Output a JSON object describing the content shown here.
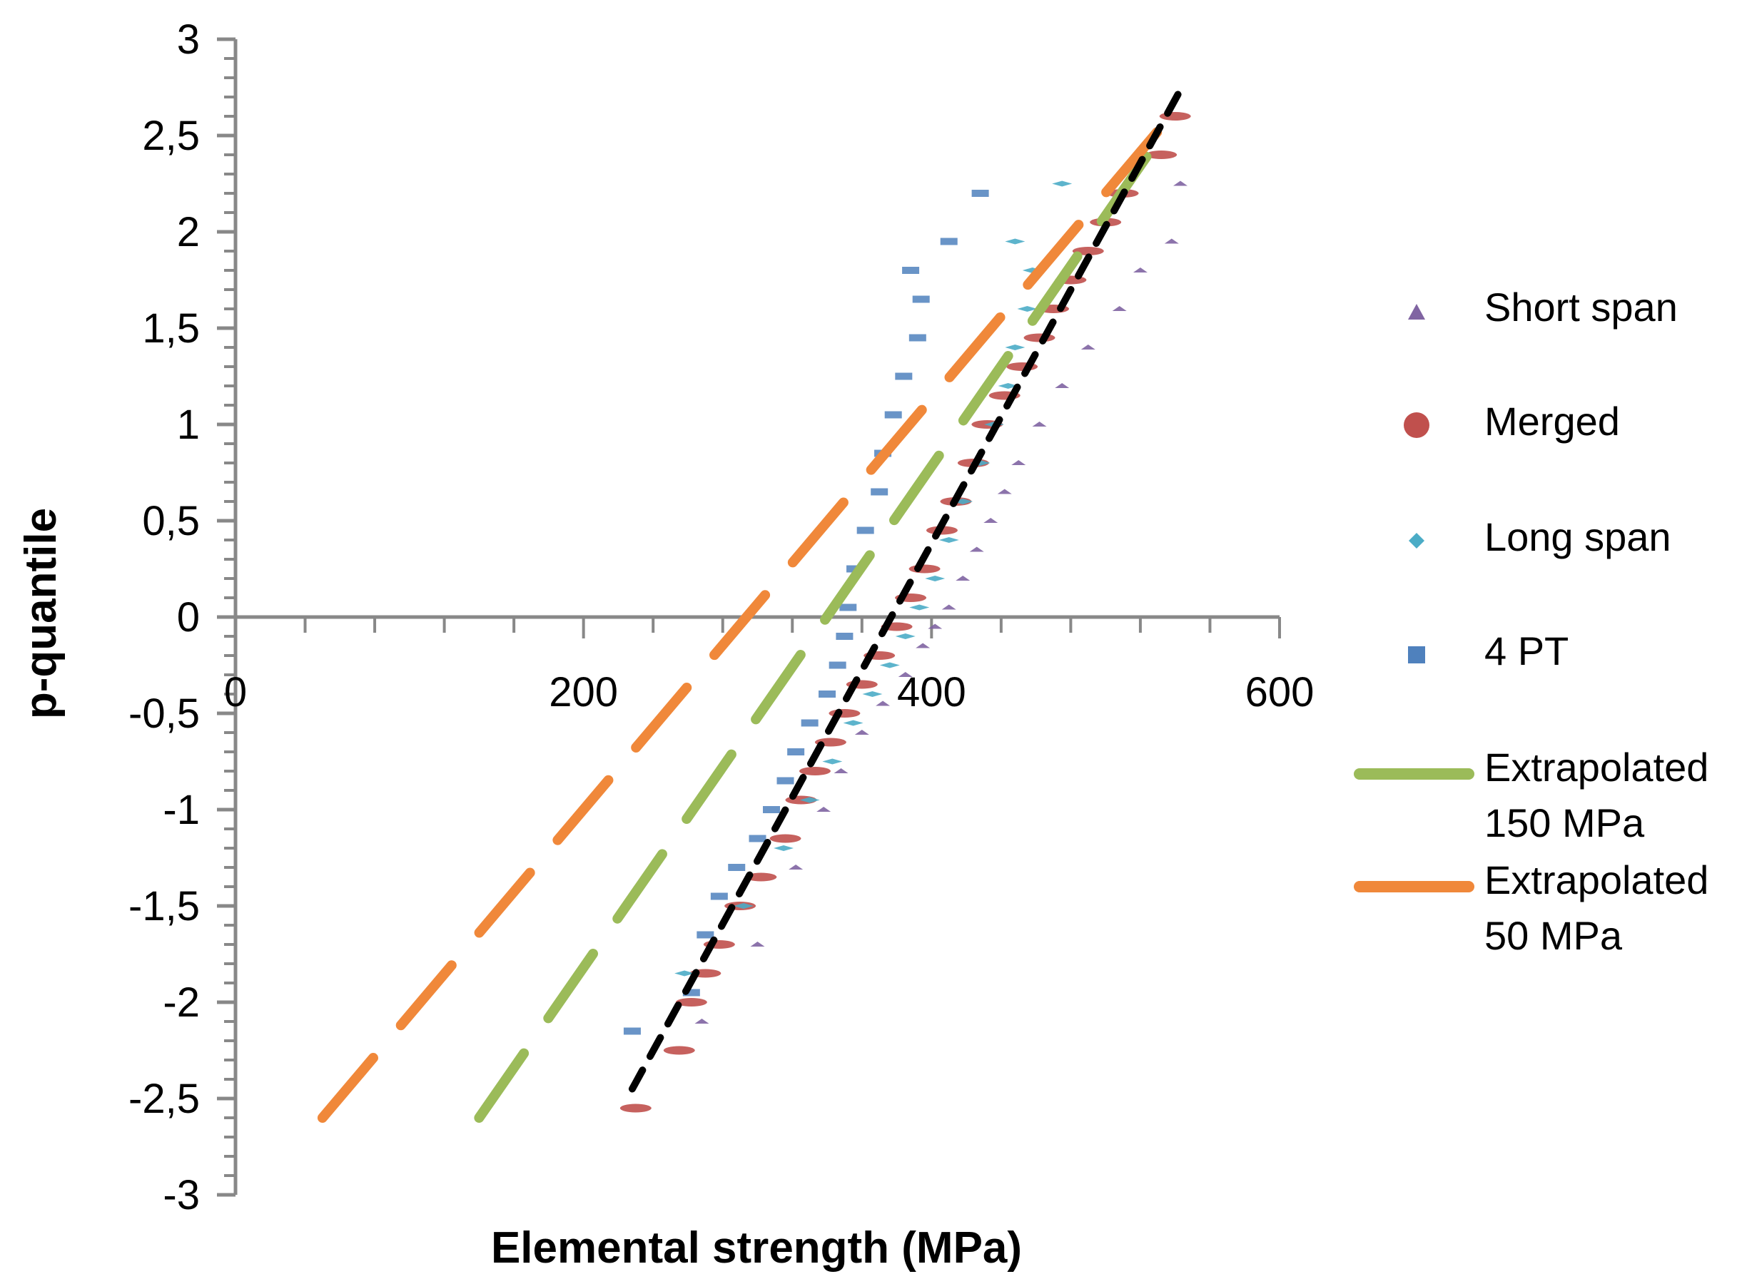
{
  "chart_data": {
    "type": "scatter",
    "xlabel": "Elemental strength (MPa)",
    "ylabel": "p-quantile",
    "xlim": [
      0,
      600
    ],
    "ylim": [
      -3,
      3
    ],
    "x_ticks": [
      "0",
      "200",
      "400",
      "600"
    ],
    "x_tick_values": [
      0,
      200,
      400,
      600
    ],
    "y_ticks": [
      "3",
      "2,5",
      "2",
      "1,5",
      "1",
      "0,5",
      "0",
      "-0,5",
      "-1",
      "-1,5",
      "-2",
      "-2,5",
      "-3"
    ],
    "y_tick_values": [
      3,
      2.5,
      2,
      1.5,
      1,
      0.5,
      0,
      -0.5,
      -1,
      -1.5,
      -2,
      -2.5,
      -3
    ],
    "grid": false,
    "legend_position": "right",
    "series": [
      {
        "name": "Short span",
        "marker": "triangle",
        "color": "#8064A2",
        "points": [
          [
            268,
            -2.1
          ],
          [
            300,
            -1.7
          ],
          [
            322,
            -1.3
          ],
          [
            338,
            -1.0
          ],
          [
            348,
            -0.8
          ],
          [
            360,
            -0.6
          ],
          [
            372,
            -0.45
          ],
          [
            385,
            -0.3
          ],
          [
            395,
            -0.15
          ],
          [
            402,
            -0.05
          ],
          [
            410,
            0.05
          ],
          [
            418,
            0.2
          ],
          [
            426,
            0.35
          ],
          [
            434,
            0.5
          ],
          [
            442,
            0.65
          ],
          [
            450,
            0.8
          ],
          [
            462,
            1.0
          ],
          [
            475,
            1.2
          ],
          [
            490,
            1.4
          ],
          [
            508,
            1.6
          ],
          [
            520,
            1.8
          ],
          [
            538,
            1.95
          ],
          [
            543,
            2.25
          ]
        ]
      },
      {
        "name": "Merged",
        "marker": "circle",
        "color": "#C0504D",
        "points": [
          [
            230,
            -2.55
          ],
          [
            255,
            -2.25
          ],
          [
            262,
            -2.0
          ],
          [
            270,
            -1.85
          ],
          [
            278,
            -1.7
          ],
          [
            290,
            -1.5
          ],
          [
            302,
            -1.35
          ],
          [
            316,
            -1.15
          ],
          [
            325,
            -0.95
          ],
          [
            333,
            -0.8
          ],
          [
            342,
            -0.65
          ],
          [
            350,
            -0.5
          ],
          [
            360,
            -0.35
          ],
          [
            370,
            -0.2
          ],
          [
            380,
            -0.05
          ],
          [
            388,
            0.1
          ],
          [
            396,
            0.25
          ],
          [
            406,
            0.45
          ],
          [
            414,
            0.6
          ],
          [
            424,
            0.8
          ],
          [
            432,
            1.0
          ],
          [
            442,
            1.15
          ],
          [
            452,
            1.3
          ],
          [
            462,
            1.45
          ],
          [
            470,
            1.6
          ],
          [
            480,
            1.75
          ],
          [
            490,
            1.9
          ],
          [
            500,
            2.05
          ],
          [
            510,
            2.2
          ],
          [
            532,
            2.4
          ],
          [
            540,
            2.6
          ]
        ]
      },
      {
        "name": "Long span",
        "marker": "diamond",
        "color": "#4BACC6",
        "points": [
          [
            258,
            -1.85
          ],
          [
            292,
            -1.5
          ],
          [
            315,
            -1.2
          ],
          [
            330,
            -0.95
          ],
          [
            343,
            -0.75
          ],
          [
            355,
            -0.55
          ],
          [
            366,
            -0.4
          ],
          [
            376,
            -0.25
          ],
          [
            385,
            -0.1
          ],
          [
            393,
            0.05
          ],
          [
            402,
            0.2
          ],
          [
            410,
            0.4
          ],
          [
            418,
            0.6
          ],
          [
            428,
            0.8
          ],
          [
            436,
            1.0
          ],
          [
            444,
            1.2
          ],
          [
            448,
            1.4
          ],
          [
            455,
            1.6
          ],
          [
            458,
            1.8
          ],
          [
            448,
            1.95
          ],
          [
            475,
            2.25
          ]
        ]
      },
      {
        "name": "4 PT",
        "marker": "square",
        "color": "#4F81BD",
        "points": [
          [
            228,
            -2.15
          ],
          [
            262,
            -1.95
          ],
          [
            270,
            -1.65
          ],
          [
            278,
            -1.45
          ],
          [
            288,
            -1.3
          ],
          [
            300,
            -1.15
          ],
          [
            308,
            -1.0
          ],
          [
            316,
            -0.85
          ],
          [
            322,
            -0.7
          ],
          [
            330,
            -0.55
          ],
          [
            340,
            -0.4
          ],
          [
            346,
            -0.25
          ],
          [
            350,
            -0.1
          ],
          [
            352,
            0.05
          ],
          [
            356,
            0.25
          ],
          [
            362,
            0.45
          ],
          [
            370,
            0.65
          ],
          [
            372,
            0.85
          ],
          [
            378,
            1.05
          ],
          [
            384,
            1.25
          ],
          [
            392,
            1.45
          ],
          [
            394,
            1.65
          ],
          [
            388,
            1.8
          ],
          [
            410,
            1.95
          ],
          [
            428,
            2.2
          ]
        ]
      },
      {
        "name": "Extrapolated 150 MPa",
        "marker": "dashed-line",
        "color": "#9BBB59",
        "points": [
          [
            140,
            -2.6
          ],
          [
            532,
            2.5
          ]
        ]
      },
      {
        "name": "Extrapolated 50 MPa",
        "marker": "dashed-line",
        "color": "#F0883A",
        "points": [
          [
            50,
            -2.6
          ],
          [
            542,
            2.65
          ]
        ]
      },
      {
        "name": "",
        "marker": "dashed-line",
        "color": "#000000",
        "points": [
          [
            228,
            -2.45
          ],
          [
            542,
            2.72
          ]
        ]
      }
    ]
  },
  "legend": {
    "items": [
      {
        "key": "short",
        "lines": [
          "Short span"
        ]
      },
      {
        "key": "merged",
        "lines": [
          "Merged"
        ]
      },
      {
        "key": "long",
        "lines": [
          "Long span"
        ]
      },
      {
        "key": "fourpt",
        "lines": [
          "4 PT"
        ]
      },
      {
        "key": "ext150",
        "lines": [
          "Extrapolated",
          "150 MPa"
        ]
      },
      {
        "key": "ext50",
        "lines": [
          "Extrapolated",
          "50 MPa"
        ]
      }
    ]
  }
}
